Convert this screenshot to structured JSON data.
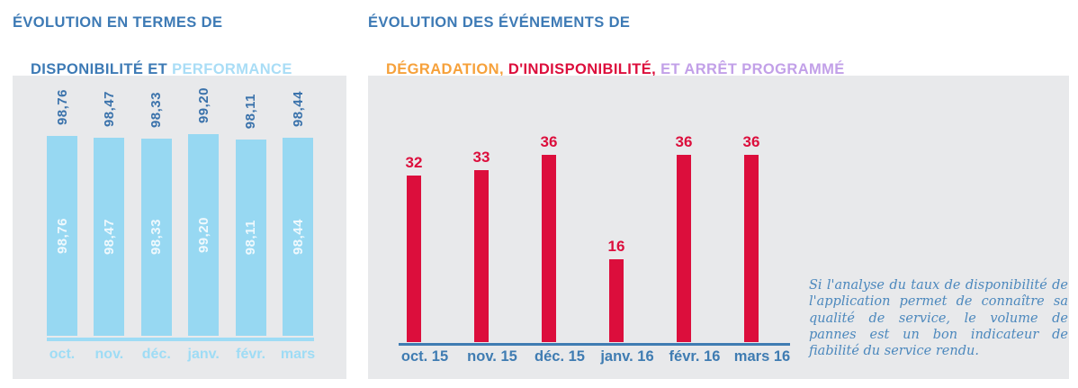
{
  "titles": {
    "left": {
      "line1": "ÉVOLUTION EN TERMES DE",
      "line2_main": "DISPONIBILITÉ ET ",
      "line2_accent": "PERFORMANCE"
    },
    "right": {
      "line1": "ÉVOLUTION DES ÉVÉNEMENTS DE",
      "line2_degradation": "DÉGRADATION, ",
      "line2_indisponibilite": "D'INDISPONIBILITÉ, ",
      "line2_arret": "ET ARRÊT PROGRAMMÉ"
    }
  },
  "annotation": {
    "text": "Si l'analyse du taux de disponibilité de l'application permet de connaître sa qualité de service, le volume de pannes est un bon indicateur de fiabilité du service rendu."
  },
  "colors": {
    "title_blue": "#3d7ab5",
    "performance_light_blue": "#a9ddf6",
    "bar_light_blue": "#97d8f2",
    "axis_month_light_blue": "#9edcf5",
    "value_dark_blue": "#3a72ab",
    "event_red": "#dc0e3c",
    "degradation_orange": "#f6a13b",
    "arret_lavender": "#c2a0e8",
    "steel_blue_axis": "#3f7cb2",
    "panel_gray": "#e8e9eb",
    "annotation_blue": "#4c88bd"
  },
  "chart_data": [
    {
      "type": "bar",
      "title": "ÉVOLUTION EN TERMES DE DISPONIBILITÉ ET PERFORMANCE",
      "categories": [
        "oct.",
        "nov.",
        "déc.",
        "janv.",
        "févr.",
        "mars"
      ],
      "values": [
        98.76,
        98.47,
        98.33,
        99.2,
        98.11,
        98.44
      ],
      "value_labels": [
        "98,76",
        "98,47",
        "98,33",
        "99,20",
        "98,11",
        "98,44"
      ],
      "value_label_style": "rotated 90°, shown above each bar (dark blue) and inside each bar (white)",
      "bar_color": "#97d8f2",
      "axis_color": "#9edcf5",
      "y_axis_visible": false,
      "grid": false,
      "legend": false
    },
    {
      "type": "bar",
      "title": "ÉVOLUTION DES ÉVÉNEMENTS DE DÉGRADATION, D'INDISPONIBILITÉ, ET ARRÊT PROGRAMMÉ",
      "categories": [
        "oct. 15",
        "nov. 15",
        "déc. 15",
        "janv. 16",
        "févr. 16",
        "mars 16"
      ],
      "values": [
        32,
        33,
        36,
        16,
        36,
        36
      ],
      "value_label_style": "shown above each bar in red",
      "bar_color": "#dc0e3c",
      "axis_color": "#3f7cb2",
      "y_axis_visible": false,
      "grid": false,
      "legend": false
    }
  ]
}
